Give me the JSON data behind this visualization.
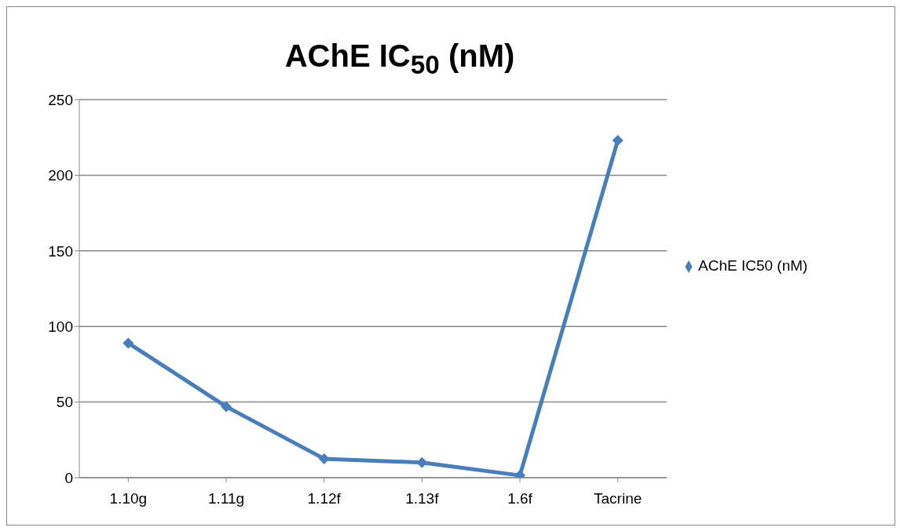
{
  "chart_data": {
    "type": "line",
    "title": "AChE IC$_{50}$ (nM)",
    "categories": [
      "1.10g",
      "1.11g",
      "1.12f",
      "1.13f",
      "1.6f",
      "Tacrine"
    ],
    "series": [
      {
        "name": "AChE IC50 (nM)",
        "color": "#4a7ebb",
        "values": [
          89,
          47,
          12.5,
          10,
          1.5,
          223
        ]
      }
    ],
    "ylim": [
      0,
      250
    ],
    "yticks": [
      0,
      50,
      100,
      150,
      200,
      250
    ],
    "grid": "y",
    "legend": "right",
    "marker": "diamond",
    "line_style": "solid"
  }
}
